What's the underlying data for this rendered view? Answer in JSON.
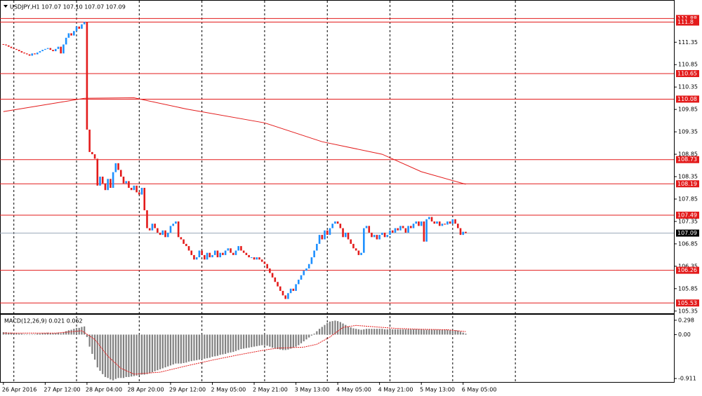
{
  "chart_data": {
    "type": "candlestick",
    "title": "USDJPY,H1  107.07 107.10 107.07 107.09",
    "up_color": "#1e90ff",
    "down_color": "#e31b1b",
    "close": [
      111.3,
      111.28,
      111.25,
      111.22,
      111.2,
      111.18,
      111.15,
      111.12,
      111.1,
      111.08,
      111.05,
      111.1,
      111.08,
      111.12,
      111.15,
      111.18,
      111.2,
      111.22,
      111.18,
      111.15,
      111.2,
      111.25,
      111.1,
      111.3,
      111.45,
      111.55,
      111.5,
      111.6,
      111.7,
      111.65,
      111.75,
      111.8,
      109.4,
      108.9,
      108.85,
      108.75,
      108.15,
      108.35,
      108.2,
      108.05,
      108.3,
      108.1,
      108.45,
      108.65,
      108.5,
      108.35,
      108.2,
      108.25,
      108.1,
      108.05,
      108.15,
      108.0,
      107.95,
      108.1,
      107.6,
      107.2,
      107.15,
      107.3,
      107.2,
      107.1,
      107.05,
      107.15,
      107.0,
      107.1,
      107.25,
      107.3,
      107.35,
      107.0,
      106.95,
      106.85,
      106.8,
      106.7,
      106.6,
      106.5,
      106.55,
      106.7,
      106.6,
      106.5,
      106.65,
      106.55,
      106.6,
      106.7,
      106.55,
      106.65,
      106.6,
      106.7,
      106.75,
      106.65,
      106.6,
      106.7,
      106.8,
      106.7,
      106.65,
      106.6,
      106.55,
      106.55,
      106.5,
      106.55,
      106.5,
      106.45,
      106.4,
      106.3,
      106.2,
      106.1,
      106.0,
      105.9,
      105.8,
      105.7,
      105.62,
      105.75,
      105.85,
      105.8,
      105.95,
      106.05,
      106.15,
      106.25,
      106.3,
      106.4,
      106.55,
      106.7,
      106.85,
      107.05,
      106.95,
      107.15,
      107.05,
      107.2,
      107.3,
      107.35,
      107.3,
      107.2,
      107.0,
      107.1,
      106.95,
      106.85,
      106.75,
      106.7,
      106.6,
      106.65,
      107.2,
      107.25,
      107.1,
      107.0,
      107.05,
      106.95,
      107.05,
      107.1,
      107.0,
      107.05,
      107.15,
      107.1,
      107.2,
      107.15,
      107.25,
      107.2,
      107.1,
      107.25,
      107.2,
      107.3,
      107.35,
      107.25,
      107.35,
      106.9,
      107.4,
      107.45,
      107.35,
      107.3,
      107.35,
      107.25,
      107.3,
      107.28,
      107.35,
      107.3,
      107.4,
      107.3,
      107.2,
      107.05,
      107.12,
      107.09
    ],
    "ma": {
      "color": "#e31b1b",
      "x": [
        0,
        31,
        50,
        70,
        100,
        122,
        145,
        160,
        177
      ],
      "values": [
        109.8,
        110.1,
        110.11,
        109.86,
        109.55,
        109.13,
        108.85,
        108.46,
        108.18
      ]
    },
    "levels": [
      111.88,
      111.8,
      110.65,
      110.08,
      108.73,
      108.19,
      107.49,
      106.26,
      105.53
    ],
    "level_color": "#e31b1b",
    "current_price": 107.09,
    "xlim": [
      -1.3,
      256.7
    ],
    "ylim": [
      105.3,
      112.23
    ],
    "yticks": [
      111.35,
      110.85,
      110.35,
      109.85,
      109.35,
      108.85,
      108.35,
      107.85,
      107.35,
      106.85,
      106.35,
      105.85,
      105.35
    ],
    "xgrid": [
      4,
      28,
      52,
      76,
      100,
      124,
      148,
      172,
      196
    ],
    "xticks": [
      {
        "value": 0,
        "label": "26 Apr 2016"
      },
      {
        "value": 16,
        "label": "27 Apr 12:00"
      },
      {
        "value": 32,
        "label": "28 Apr 04:00"
      },
      {
        "value": 48,
        "label": "28 Apr 20:00"
      },
      {
        "value": 64,
        "label": "29 Apr 12:00"
      },
      {
        "value": 80,
        "label": "2 May 05:00"
      },
      {
        "value": 96,
        "label": "2 May 21:00"
      },
      {
        "value": 112,
        "label": "3 May 13:00"
      },
      {
        "value": 128,
        "label": "4 May 05:00"
      },
      {
        "value": 144,
        "label": "4 May 21:00"
      },
      {
        "value": 160,
        "label": "5 May 13:00"
      },
      {
        "value": 176,
        "label": "6 May 05:00"
      }
    ],
    "macd": {
      "title": "MACD(12,26,9) 0.021 0.062",
      "color": "#808080",
      "signal_color": "#e31b1b",
      "ylim": [
        -0.983,
        0.413
      ],
      "yticks": [
        0.298,
        {
          "value": 0,
          "label": "0.00"
        },
        -0.911
      ],
      "values": [
        0.05,
        0.05,
        0.04,
        0.04,
        0.03,
        0.03,
        0.02,
        0.02,
        0.01,
        0.01,
        0.0,
        0.01,
        0.01,
        0.02,
        0.02,
        0.03,
        0.03,
        0.04,
        0.03,
        0.03,
        0.03,
        0.04,
        0.03,
        0.05,
        0.07,
        0.09,
        0.1,
        0.12,
        0.14,
        0.14,
        0.16,
        0.17,
        -0.05,
        -0.25,
        -0.4,
        -0.52,
        -0.68,
        -0.75,
        -0.82,
        -0.88,
        -0.9,
        -0.93,
        -0.95,
        -0.92,
        -0.9,
        -0.9,
        -0.9,
        -0.88,
        -0.88,
        -0.87,
        -0.86,
        -0.85,
        -0.84,
        -0.83,
        -0.83,
        -0.82,
        -0.8,
        -0.78,
        -0.76,
        -0.74,
        -0.72,
        -0.7,
        -0.68,
        -0.66,
        -0.64,
        -0.62,
        -0.6,
        -0.6,
        -0.6,
        -0.59,
        -0.58,
        -0.56,
        -0.55,
        -0.54,
        -0.53,
        -0.52,
        -0.51,
        -0.5,
        -0.49,
        -0.48,
        -0.46,
        -0.45,
        -0.44,
        -0.42,
        -0.41,
        -0.4,
        -0.38,
        -0.37,
        -0.36,
        -0.34,
        -0.32,
        -0.3,
        -0.29,
        -0.28,
        -0.27,
        -0.26,
        -0.25,
        -0.24,
        -0.23,
        -0.22,
        -0.22,
        -0.23,
        -0.25,
        -0.27,
        -0.29,
        -0.3,
        -0.31,
        -0.32,
        -0.32,
        -0.31,
        -0.29,
        -0.27,
        -0.25,
        -0.22,
        -0.18,
        -0.14,
        -0.1,
        -0.06,
        -0.02,
        0.02,
        0.07,
        0.12,
        0.16,
        0.2,
        0.24,
        0.27,
        0.28,
        0.29,
        0.28,
        0.26,
        0.23,
        0.2,
        0.17,
        0.15,
        0.13,
        0.12,
        0.11,
        0.1,
        0.11,
        0.12,
        0.12,
        0.12,
        0.12,
        0.12,
        0.12,
        0.12,
        0.11,
        0.11,
        0.11,
        0.11,
        0.11,
        0.11,
        0.11,
        0.11,
        0.11,
        0.11,
        0.11,
        0.11,
        0.11,
        0.11,
        0.11,
        0.1,
        0.1,
        0.1,
        0.1,
        0.1,
        0.1,
        0.1,
        0.1,
        0.1,
        0.1,
        0.09,
        0.09,
        0.09,
        0.08,
        0.06,
        0.04,
        0.02
      ],
      "signal": {
        "x": [
          0,
          20,
          30,
          35,
          40,
          45,
          50,
          60,
          70,
          80,
          90,
          100,
          105,
          110,
          115,
          120,
          125,
          130,
          135,
          140,
          150,
          160,
          170,
          177
        ],
        "values": [
          0.03,
          0.03,
          0.08,
          -0.1,
          -0.45,
          -0.7,
          -0.82,
          -0.78,
          -0.65,
          -0.53,
          -0.42,
          -0.32,
          -0.28,
          -0.27,
          -0.26,
          -0.2,
          -0.05,
          0.15,
          0.19,
          0.17,
          0.13,
          0.11,
          0.1,
          0.062
        ]
      }
    }
  }
}
